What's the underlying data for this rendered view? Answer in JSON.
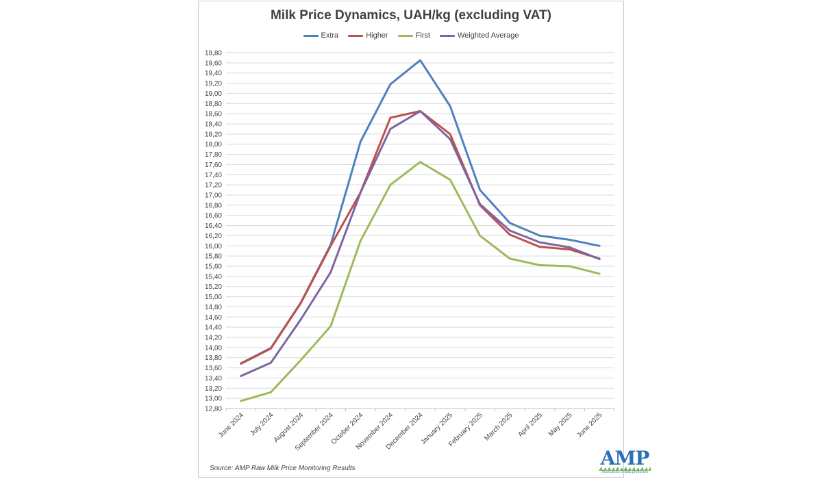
{
  "chart_data": {
    "type": "line",
    "title": "Milk Price Dynamics, UAH/kg (excluding VAT)",
    "categories": [
      "June 2024",
      "July 2024",
      "August 2024",
      "September 2024",
      "October 2024",
      "November 2024",
      "December 2024",
      "January 2025",
      "February 2025",
      "March 2025",
      "April 2025",
      "May 2025",
      "June 2025"
    ],
    "series": [
      {
        "name": "Extra",
        "color": "#4f81bd",
        "values": [
          13.69,
          13.99,
          14.88,
          16.02,
          18.05,
          19.18,
          19.65,
          18.75,
          17.1,
          16.45,
          16.2,
          16.12,
          16.0
        ]
      },
      {
        "name": "Higher",
        "color": "#c0504d",
        "values": [
          13.68,
          13.98,
          14.87,
          16.0,
          17.05,
          18.52,
          18.65,
          18.2,
          16.8,
          16.22,
          15.98,
          15.93,
          15.75
        ]
      },
      {
        "name": "First",
        "color": "#9bbb59",
        "values": [
          12.95,
          13.12,
          13.75,
          14.42,
          16.1,
          17.2,
          17.65,
          17.3,
          16.2,
          15.75,
          15.62,
          15.6,
          15.45
        ]
      },
      {
        "name": "Weighted Average",
        "color": "#8064a2",
        "values": [
          13.44,
          13.7,
          14.55,
          15.48,
          17.05,
          18.3,
          18.65,
          18.1,
          16.82,
          16.3,
          16.07,
          15.97,
          15.74
        ]
      }
    ],
    "yticks": [
      "12,80",
      "13,00",
      "13,20",
      "13,40",
      "13,60",
      "13,80",
      "14,00",
      "14,20",
      "14,40",
      "14,60",
      "14,80",
      "15,00",
      "15,20",
      "15,40",
      "15,60",
      "15,80",
      "16,00",
      "16,20",
      "16,40",
      "16,60",
      "16,80",
      "17,00",
      "17,20",
      "17,40",
      "17,60",
      "17,80",
      "18,00",
      "18,20",
      "18,40",
      "18,60",
      "18,80",
      "19,00",
      "19,20",
      "19,40",
      "19,60",
      "19,80"
    ],
    "ylim": [
      12.8,
      19.8
    ],
    "xlabel": "",
    "ylabel": "",
    "grid": true,
    "legend_position": "top"
  },
  "source_note": "Source: AMP Raw Milk Price Monitoring Results",
  "logo": {
    "text": "AMP",
    "tagline": "Association of milk producers"
  }
}
